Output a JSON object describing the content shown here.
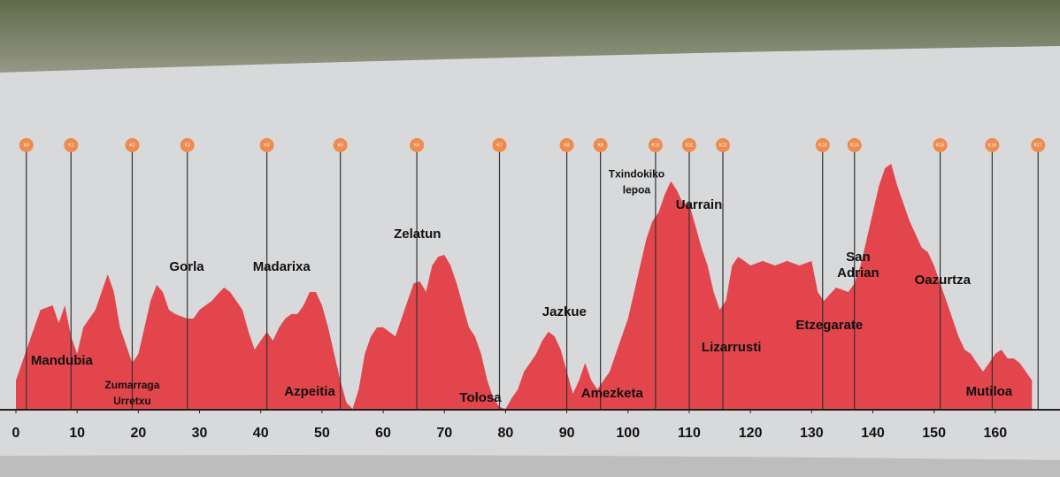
{
  "chart_data": {
    "type": "area",
    "color": "#e2454b",
    "x": [
      0,
      2,
      4,
      6,
      7,
      8,
      9,
      10,
      11,
      12,
      13,
      14,
      15,
      16,
      17,
      18,
      19,
      20,
      21,
      22,
      23,
      24,
      25,
      26,
      28,
      29,
      30,
      31,
      32,
      33,
      34,
      35,
      36,
      37,
      38,
      39,
      40,
      41,
      42,
      43,
      44,
      45,
      46,
      47,
      48,
      49,
      50,
      51,
      52,
      53,
      54,
      55,
      56,
      57,
      58,
      59,
      60,
      61,
      62,
      63,
      64,
      65,
      66,
      67,
      68,
      69,
      70,
      71,
      72,
      73,
      74,
      75,
      76,
      77,
      78,
      79,
      80,
      81,
      82,
      83,
      84,
      85,
      86,
      87,
      88,
      89,
      90,
      91,
      92,
      93,
      94,
      95,
      96,
      97,
      98,
      99,
      100,
      101,
      102,
      103,
      104,
      105,
      106,
      107,
      108,
      109,
      110,
      111,
      112,
      113,
      114,
      115,
      116,
      117,
      118,
      119,
      120,
      122,
      124,
      126,
      128,
      130,
      131,
      132,
      134,
      136,
      137,
      138,
      139,
      140,
      141,
      142,
      143,
      144,
      145,
      146,
      147,
      148,
      149,
      150,
      151,
      152,
      153,
      154,
      155,
      156,
      157,
      158,
      159,
      160,
      161,
      162,
      163,
      164,
      165,
      166
    ],
    "values": [
      107,
      240,
      373,
      390,
      323,
      390,
      273,
      207,
      307,
      340,
      373,
      440,
      507,
      440,
      307,
      240,
      173,
      207,
      307,
      407,
      467,
      440,
      373,
      357,
      340,
      340,
      373,
      390,
      407,
      433,
      457,
      440,
      407,
      373,
      290,
      223,
      257,
      290,
      257,
      307,
      340,
      357,
      357,
      390,
      440,
      440,
      390,
      307,
      207,
      107,
      23,
      0,
      73,
      207,
      273,
      307,
      307,
      290,
      273,
      340,
      407,
      473,
      480,
      440,
      540,
      573,
      580,
      540,
      473,
      390,
      307,
      273,
      207,
      107,
      40,
      7,
      0,
      40,
      73,
      140,
      173,
      207,
      257,
      290,
      273,
      223,
      140,
      57,
      107,
      173,
      107,
      73,
      107,
      140,
      207,
      273,
      340,
      440,
      540,
      640,
      707,
      740,
      807,
      857,
      823,
      773,
      773,
      690,
      607,
      540,
      440,
      373,
      407,
      540,
      573,
      557,
      540,
      557,
      540,
      557,
      540,
      557,
      440,
      407,
      457,
      440,
      473,
      540,
      640,
      740,
      840,
      907,
      923,
      840,
      773,
      707,
      657,
      607,
      590,
      540,
      473,
      407,
      340,
      273,
      223,
      207,
      173,
      140,
      173,
      207,
      223,
      190,
      190,
      173,
      140,
      107
    ],
    "xlim": [
      0,
      170
    ],
    "xticks": [
      0,
      10,
      20,
      30,
      40,
      50,
      60,
      70,
      80,
      90,
      100,
      110,
      120,
      130,
      140,
      150,
      160
    ],
    "ylim": [
      0,
      1000
    ],
    "checkpoints": [
      {
        "label": "K0",
        "x": 1.7
      },
      {
        "label": "K1",
        "x": 9
      },
      {
        "label": "K2",
        "x": 19
      },
      {
        "label": "K3",
        "x": 28
      },
      {
        "label": "K4",
        "x": 41
      },
      {
        "label": "K5",
        "x": 53
      },
      {
        "label": "K6",
        "x": 65.5
      },
      {
        "label": "K7",
        "x": 79
      },
      {
        "label": "K8",
        "x": 90
      },
      {
        "label": "K9",
        "x": 95.5
      },
      {
        "label": "K10",
        "x": 104.5
      },
      {
        "label": "K11",
        "x": 110
      },
      {
        "label": "K12",
        "x": 115.5
      },
      {
        "label": "K13",
        "x": 131.8
      },
      {
        "label": "K14",
        "x": 137
      },
      {
        "label": "K15",
        "x": 151
      },
      {
        "label": "K16",
        "x": 159.5
      },
      {
        "label": "K17",
        "x": 167
      }
    ],
    "annotations": [
      {
        "text": [
          "Mandubia"
        ],
        "x": 7.5,
        "y": 180
      },
      {
        "text": [
          "Zumarraga",
          "Urretxu"
        ],
        "x": 19,
        "y": 57
      },
      {
        "text": [
          "Gorla"
        ],
        "x": 27.9,
        "y": 533
      },
      {
        "text": [
          "Madarixa"
        ],
        "x": 43.4,
        "y": 533
      },
      {
        "text": [
          "Azpeitia"
        ],
        "x": 48,
        "y": 63
      },
      {
        "text": [
          "Zelatun"
        ],
        "x": 65.6,
        "y": 657
      },
      {
        "text": [
          "Tolosa"
        ],
        "x": 75.9,
        "y": 40
      },
      {
        "text": [
          "Jazkue"
        ],
        "x": 89.6,
        "y": 363
      },
      {
        "text": [
          "Amezketa"
        ],
        "x": 97.4,
        "y": 57
      },
      {
        "text": [
          "Txindokiko",
          "lepoa"
        ],
        "x": 101.4,
        "y": 853
      },
      {
        "text": [
          "Uarrain"
        ],
        "x": 111.6,
        "y": 767
      },
      {
        "text": [
          "Lizarrusti"
        ],
        "x": 116.9,
        "y": 230
      },
      {
        "text": [
          "Etzegarate"
        ],
        "x": 132.9,
        "y": 313
      },
      {
        "text": [
          "San",
          "Adrian"
        ],
        "x": 137.6,
        "y": 540
      },
      {
        "text": [
          "Oazurtza"
        ],
        "x": 151.4,
        "y": 483
      },
      {
        "text": [
          "Mutiloa"
        ],
        "x": 159,
        "y": 63
      }
    ]
  }
}
